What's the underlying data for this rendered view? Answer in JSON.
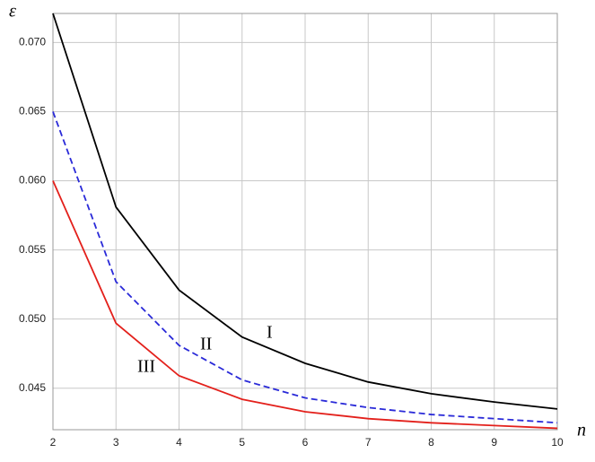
{
  "chart_data": {
    "type": "line",
    "y_label": "ε",
    "x_label": "n",
    "x": [
      2,
      3,
      4,
      5,
      6,
      7,
      8,
      9,
      10
    ],
    "series": [
      {
        "name": "I",
        "color": "#000000",
        "dashed": false,
        "values": [
          0.0721,
          0.0581,
          0.0521,
          0.0487,
          0.0468,
          0.04545,
          0.0446,
          0.044,
          0.0435
        ]
      },
      {
        "name": "II",
        "color": "#2a2ad8",
        "dashed": true,
        "values": [
          0.065,
          0.0527,
          0.0481,
          0.0456,
          0.0443,
          0.0436,
          0.0431,
          0.0428,
          0.0425
        ]
      },
      {
        "name": "III",
        "color": "#e3201b",
        "dashed": false,
        "values": [
          0.06,
          0.0497,
          0.0459,
          0.0442,
          0.0433,
          0.0428,
          0.0425,
          0.0423,
          0.0421
        ]
      }
    ],
    "xlim": [
      2,
      10
    ],
    "xticks": [
      2,
      3,
      4,
      5,
      6,
      7,
      8,
      9,
      10
    ],
    "ylim": [
      0.042,
      0.0721
    ],
    "yticks": [
      0.045,
      {
        "value": 0.05,
        "label": "0.050"
      },
      0.055,
      {
        "value": 0.06,
        "label": "0.060"
      },
      0.065,
      {
        "value": 0.07,
        "label": "0.070"
      }
    ],
    "grid": true
  }
}
